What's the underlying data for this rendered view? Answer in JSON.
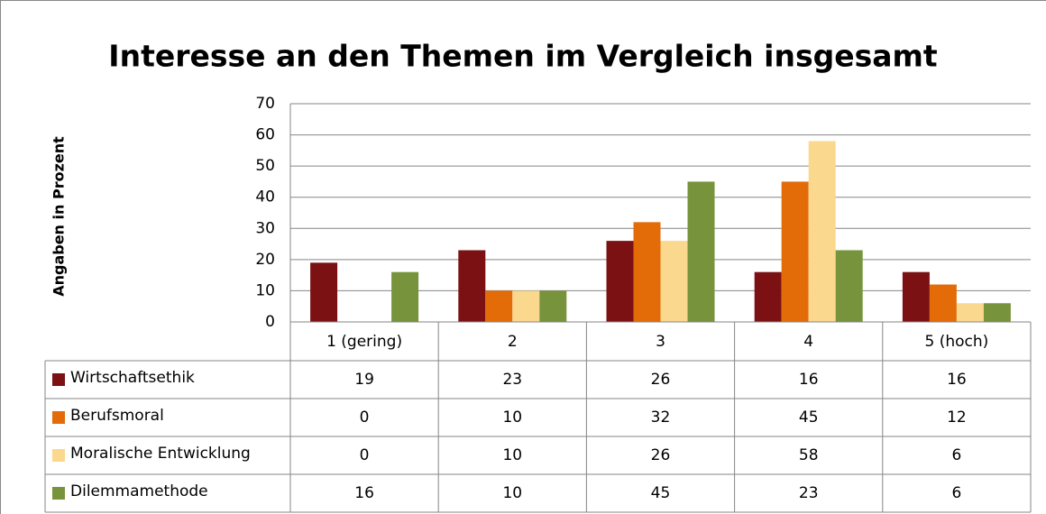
{
  "chart_data": {
    "type": "bar",
    "title": "Interesse an den Themen im Vergleich insgesamt",
    "y_label": "Angaben in Prozent",
    "categories": [
      "1 (gering)",
      "2",
      "3",
      "4",
      "5 (hoch)"
    ],
    "series": [
      {
        "name": "Wirtschaftsethik",
        "color": "#7b1113",
        "values": [
          19,
          23,
          26,
          16,
          16
        ]
      },
      {
        "name": "Berufsmoral",
        "color": "#e36c09",
        "values": [
          0,
          10,
          32,
          45,
          12
        ]
      },
      {
        "name": "Moralische Entwicklung",
        "color": "#fad88d",
        "values": [
          0,
          10,
          26,
          58,
          6
        ]
      },
      {
        "name": "Dilemmamethode",
        "color": "#77933c",
        "values": [
          16,
          10,
          45,
          23,
          6
        ]
      }
    ],
    "ylim": [
      0,
      70
    ],
    "yticks": [
      0,
      10,
      20,
      30,
      40,
      50,
      60,
      70
    ],
    "grid": true,
    "data_table": true
  }
}
